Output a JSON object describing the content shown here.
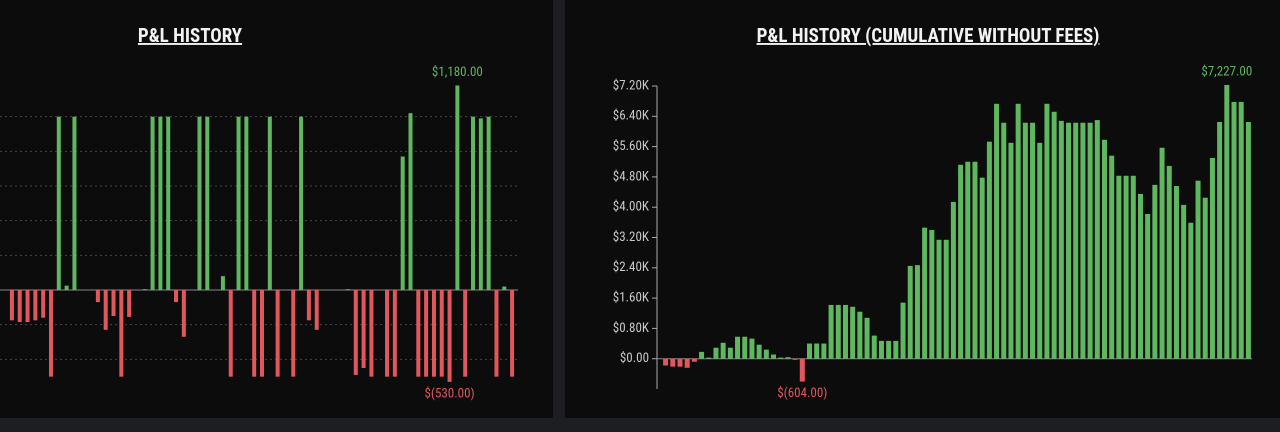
{
  "chart_data": [
    {
      "type": "bar",
      "title": "P&L HISTORY",
      "values": [
        -175,
        -185,
        -185,
        -175,
        -160,
        -500,
        1000,
        25,
        1000,
        0,
        0,
        -70,
        -230,
        -150,
        -500,
        -155,
        0,
        5,
        1000,
        1000,
        1000,
        -70,
        -270,
        0,
        1000,
        1000,
        0,
        80,
        -500,
        1000,
        1000,
        -500,
        -500,
        1000,
        -500,
        0,
        -500,
        1000,
        -175,
        -230,
        0,
        0,
        0,
        5,
        -490,
        -450,
        -500,
        0,
        -500,
        -500,
        770,
        1020,
        -500,
        -500,
        -500,
        -500,
        -530,
        1180,
        -500,
        1000,
        990,
        1000,
        -500,
        20,
        -500
      ],
      "value_labels": [
        null,
        null,
        null,
        null,
        null,
        null,
        null,
        null,
        null,
        null,
        null,
        null,
        null,
        null,
        null,
        null,
        null,
        null,
        null,
        null,
        null,
        null,
        null,
        null,
        null,
        null,
        null,
        null,
        null,
        null,
        null,
        null,
        null,
        null,
        null,
        null,
        null,
        null,
        null,
        null,
        null,
        null,
        null,
        null,
        null,
        null,
        null,
        null,
        null,
        null,
        null,
        null,
        null,
        null,
        null,
        null,
        "$(530.00)",
        "$1,180.00",
        null,
        null,
        null,
        null,
        null,
        null,
        null
      ],
      "ylim": [
        -600,
        1200
      ],
      "yticks": [
        -400,
        -200,
        0,
        200,
        400,
        600,
        800,
        1000
      ],
      "grid": true,
      "positive_color": "#5fb760",
      "negative_color": "#e0575e"
    },
    {
      "type": "bar",
      "title": "P&L HISTORY (CUMULATIVE WITHOUT FEES)",
      "values": [
        -180,
        -210,
        -210,
        -240,
        -80,
        180,
        30,
        290,
        420,
        290,
        580,
        580,
        530,
        370,
        240,
        110,
        30,
        40,
        -30,
        -604,
        400,
        400,
        400,
        1420,
        1420,
        1420,
        1370,
        1240,
        1080,
        610,
        470,
        470,
        470,
        1480,
        2450,
        2470,
        3460,
        3400,
        3140,
        3140,
        4140,
        5120,
        5200,
        5200,
        4780,
        5730,
        6730,
        6230,
        5700,
        6730,
        6230,
        6230,
        5700,
        6730,
        6520,
        6280,
        6230,
        6230,
        6230,
        6230,
        6300,
        5780,
        5360,
        4830,
        4830,
        4830,
        4350,
        3820,
        4590,
        5570,
        5090,
        4560,
        4060,
        3590,
        4700,
        4250,
        5300,
        6250,
        7227,
        6780,
        6780,
        6250
      ],
      "value_labels": [
        null,
        null,
        null,
        null,
        null,
        null,
        null,
        null,
        null,
        null,
        null,
        null,
        null,
        null,
        null,
        null,
        null,
        null,
        null,
        "$(604.00)",
        null,
        null,
        null,
        null,
        null,
        null,
        null,
        null,
        null,
        null,
        null,
        null,
        null,
        null,
        null,
        null,
        null,
        null,
        null,
        null,
        null,
        null,
        null,
        null,
        null,
        null,
        null,
        null,
        null,
        null,
        null,
        null,
        null,
        null,
        null,
        null,
        null,
        null,
        null,
        null,
        null,
        null,
        null,
        null,
        null,
        null,
        null,
        null,
        null,
        null,
        null,
        null,
        null,
        null,
        null,
        null,
        null,
        null,
        "$7,227.00",
        null,
        null,
        null
      ],
      "ylim": [
        -800,
        7200
      ],
      "yticks": [
        {
          "value": 0,
          "label": "$0.00"
        },
        {
          "value": 800,
          "label": "$0.80K"
        },
        {
          "value": 1600,
          "label": "$1.60K"
        },
        {
          "value": 2400,
          "label": "$2.40K"
        },
        {
          "value": 3200,
          "label": "$3.20K"
        },
        {
          "value": 4000,
          "label": "$4.00K"
        },
        {
          "value": 4800,
          "label": "$4.80K"
        },
        {
          "value": 5600,
          "label": "$5.60K"
        },
        {
          "value": 6400,
          "label": "$6.40K"
        },
        {
          "value": 7200,
          "label": "$7.20K"
        }
      ],
      "grid": false,
      "positive_color": "#5fb760",
      "negative_color": "#e0575e"
    }
  ]
}
